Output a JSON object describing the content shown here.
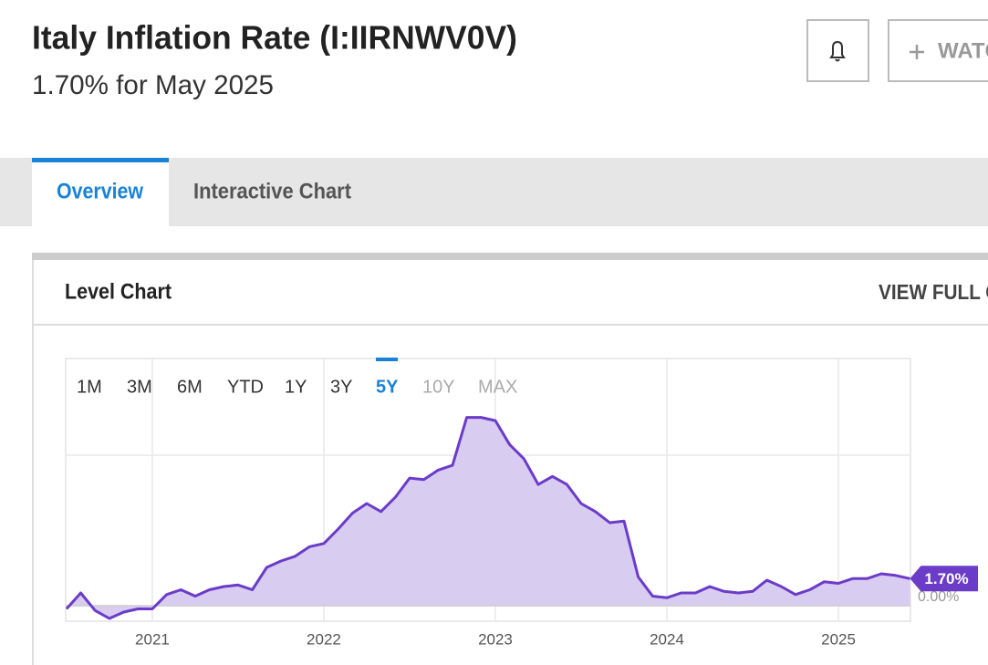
{
  "header": {
    "title": "Italy Inflation Rate (I:IIRNWV0V)",
    "subtitle": "1.70% for May 2025",
    "watch_button": "WATCH"
  },
  "tabs": [
    "Overview",
    "Interactive Chart"
  ],
  "card": {
    "title": "Level Chart",
    "link": "VIEW FULL CHART"
  },
  "range_buttons": [
    "1M",
    "3M",
    "6M",
    "YTD",
    "1Y",
    "3Y",
    "5Y",
    "10Y",
    "MAX"
  ],
  "chart_data": {
    "type": "area",
    "color": "#6a3cc8",
    "fill": "#d8ccf1",
    "x": [
      2020.5,
      2020.583,
      2020.667,
      2020.75,
      2020.833,
      2020.917,
      2021,
      2021.083,
      2021.167,
      2021.25,
      2021.333,
      2021.417,
      2021.5,
      2021.583,
      2021.667,
      2021.75,
      2021.833,
      2021.917,
      2022,
      2022.083,
      2022.167,
      2022.25,
      2022.333,
      2022.417,
      2022.5,
      2022.583,
      2022.667,
      2022.75,
      2022.833,
      2022.917,
      2023,
      2023.083,
      2023.167,
      2023.25,
      2023.333,
      2023.417,
      2023.5,
      2023.583,
      2023.667,
      2023.75,
      2023.833,
      2023.917,
      2024,
      2024.083,
      2024.167,
      2024.25,
      2024.333,
      2024.417,
      2024.5,
      2024.583,
      2024.667,
      2024.75,
      2024.833,
      2024.917,
      2025,
      2025.083,
      2025.167,
      2025.25,
      2025.333,
      2025.417
    ],
    "values": [
      -0.2,
      0.8,
      -0.3,
      -0.8,
      -0.4,
      -0.2,
      -0.2,
      0.7,
      1.0,
      0.6,
      1.0,
      1.2,
      1.3,
      1.0,
      2.4,
      2.8,
      3.1,
      3.7,
      3.9,
      4.8,
      5.8,
      6.4,
      5.9,
      6.8,
      8.0,
      7.9,
      8.5,
      8.8,
      11.8,
      11.8,
      11.6,
      10.1,
      9.2,
      7.6,
      8.1,
      7.6,
      6.4,
      5.9,
      5.2,
      5.3,
      1.8,
      0.6,
      0.5,
      0.8,
      0.8,
      1.2,
      0.9,
      0.8,
      0.9,
      1.6,
      1.2,
      0.7,
      1.0,
      1.5,
      1.4,
      1.7,
      1.7,
      2.0,
      1.9,
      1.7
    ],
    "value_labels": [
      null,
      null,
      null,
      null,
      null,
      null,
      null,
      null,
      null,
      null,
      null,
      null,
      null,
      null,
      null,
      null,
      null,
      null,
      null,
      null,
      null,
      null,
      null,
      null,
      null,
      null,
      null,
      null,
      null,
      null,
      null,
      null,
      null,
      null,
      null,
      null,
      null,
      null,
      null,
      null,
      null,
      null,
      null,
      null,
      null,
      null,
      null,
      null,
      null,
      null,
      null,
      null,
      null,
      null,
      null,
      null,
      null,
      null,
      null,
      "1.70%"
    ],
    "xlim": [
      2020.495,
      2025.42
    ],
    "xticks": [
      2021,
      2022,
      2023,
      2024,
      2025
    ],
    "ylim": [
      -0.97,
      15.49
    ],
    "yticks": [
      {
        "value": 0,
        "label": "0.00%"
      }
    ],
    "grid": true
  }
}
